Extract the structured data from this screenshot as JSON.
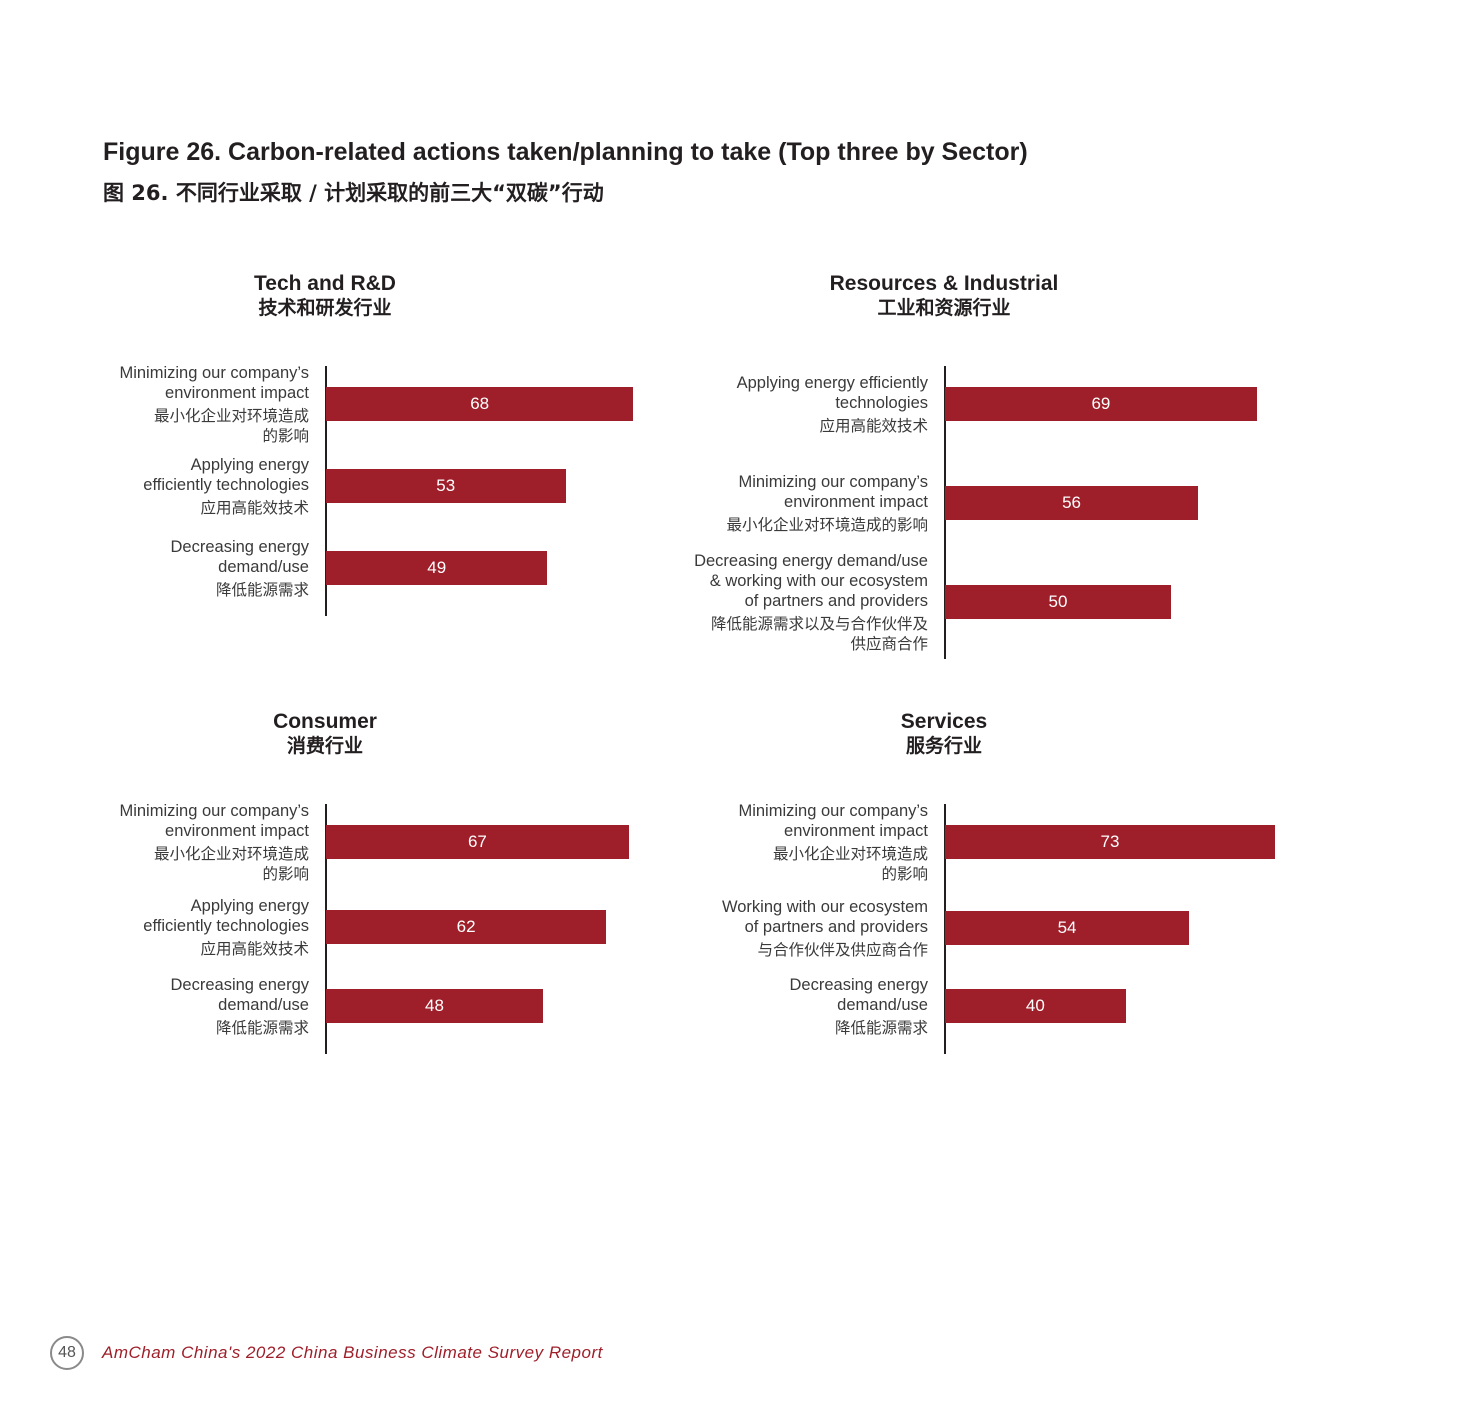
{
  "figure": {
    "title": "Figure 26. Carbon-related actions taken/planning to take (Top three by Sector)",
    "subtitle": "图 26. 不同行业采取 / 计划采取的前三大“双碳”行动"
  },
  "colors": {
    "bar": "#9e1f2a",
    "axis": "#231f20",
    "footer_text": "#9e1f2a"
  },
  "chart_data": [
    {
      "type": "bar",
      "orientation": "horizontal",
      "title": "Tech and R&D",
      "title_zh": "技术和研发行业",
      "categories": [
        {
          "en": "Minimizing our company’s\nenvironment impact",
          "zh": "最小化企业对环境造成\n的影响"
        },
        {
          "en": "Applying energy\nefficiently technologies",
          "zh": "应用高能效技术"
        },
        {
          "en": "Decreasing energy\ndemand/use",
          "zh": "降低能源需求"
        }
      ],
      "values": [
        68,
        53,
        49
      ]
    },
    {
      "type": "bar",
      "orientation": "horizontal",
      "title": "Resources & Industrial",
      "title_zh": "工业和资源行业",
      "categories": [
        {
          "en": "Applying energy efficiently\ntechnologies",
          "zh": "应用高能效技术"
        },
        {
          "en": "Minimizing our company’s\nenvironment impact",
          "zh": "最小化企业对环境造成的影响"
        },
        {
          "en": "Decreasing energy demand/use\n& working with our ecosystem\nof partners and providers",
          "zh": "降低能源需求以及与合作伙伴及\n供应商合作"
        }
      ],
      "values": [
        69,
        56,
        50
      ]
    },
    {
      "type": "bar",
      "orientation": "horizontal",
      "title": "Consumer",
      "title_zh": "消费行业",
      "categories": [
        {
          "en": "Minimizing our company’s\nenvironment impact",
          "zh": "最小化企业对环境造成\n的影响"
        },
        {
          "en": "Applying energy\nefficiently technologies",
          "zh": "应用高能效技术"
        },
        {
          "en": "Decreasing energy\ndemand/use",
          "zh": "降低能源需求"
        }
      ],
      "values": [
        67,
        62,
        48
      ]
    },
    {
      "type": "bar",
      "orientation": "horizontal",
      "title": "Services",
      "title_zh": "服务行业",
      "categories": [
        {
          "en": "Minimizing our company’s\nenvironment impact",
          "zh": "最小化企业对环境造成\n的影响"
        },
        {
          "en": "Working with our ecosystem\nof partners and providers",
          "zh": "与合作伙伴及供应商合作"
        },
        {
          "en": "Decreasing energy\ndemand/use",
          "zh": "降低能源需求"
        }
      ],
      "values": [
        73,
        54,
        40
      ]
    }
  ],
  "footer": {
    "page_number": "48",
    "report_name": "AmCham China's 2022 China Business Climate Survey Report"
  }
}
